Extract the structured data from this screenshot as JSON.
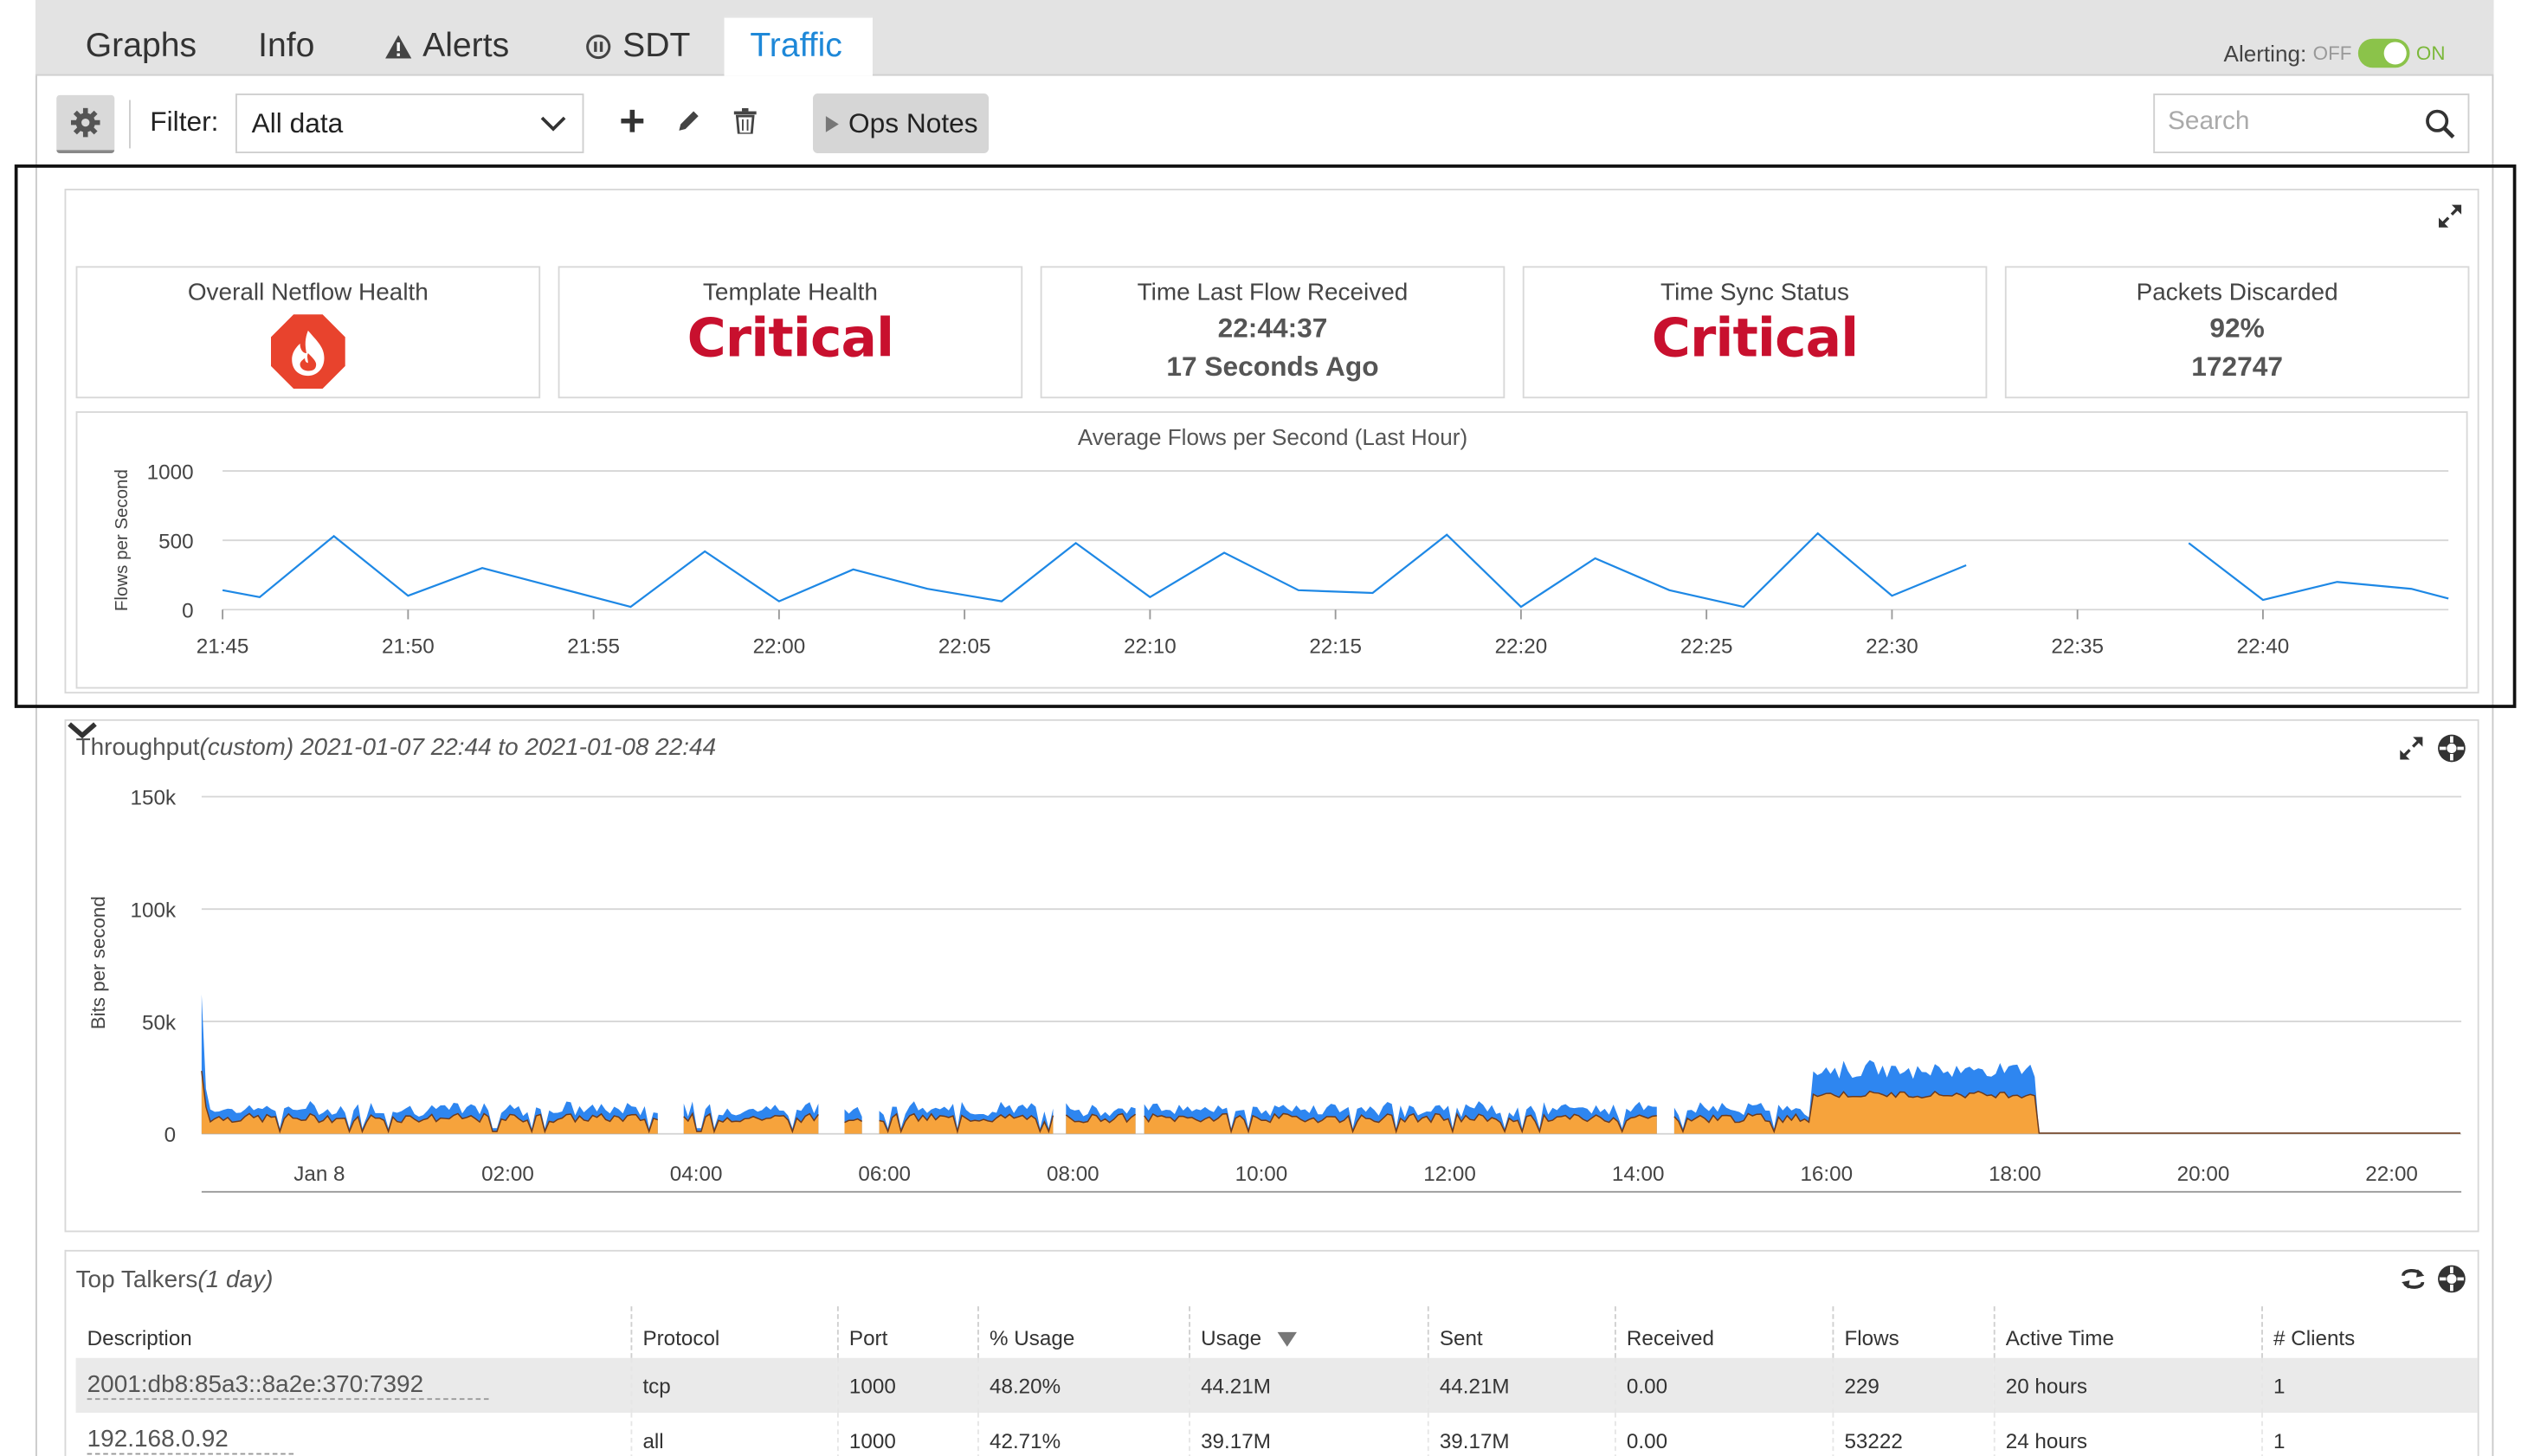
{
  "tabs": [
    {
      "label": "Graphs"
    },
    {
      "label": "Info"
    },
    {
      "label": "Alerts"
    },
    {
      "label": "SDT"
    },
    {
      "label": "Traffic"
    }
  ],
  "alerting": {
    "label": "Alerting:",
    "off": "OFF",
    "on": "ON",
    "state": "on"
  },
  "toolbar": {
    "filter_label": "Filter:",
    "filter_value": "All data",
    "ops_notes": "Ops Notes",
    "search_placeholder": "Search"
  },
  "netflow": {
    "tiles": [
      {
        "title": "Overall Netflow Health",
        "icon": "fire-octagon-icon"
      },
      {
        "title": "Template Health",
        "value": "Critical"
      },
      {
        "title": "Time Last Flow Received",
        "line1": "22:44:37",
        "line2": "17 Seconds Ago"
      },
      {
        "title": "Time Sync Status",
        "value": "Critical"
      },
      {
        "title": "Packets Discarded",
        "line1": "92%",
        "line2": "172747"
      }
    ],
    "critical_color": "#c8102e"
  },
  "chart_data": [
    {
      "type": "line",
      "title": "Average Flows per Second (Last Hour)",
      "ylabel": "Flows per Second",
      "ylim": [
        0,
        1000
      ],
      "yticks": [
        "1000",
        "500",
        "0"
      ],
      "xticks": [
        "21:45",
        "21:50",
        "21:55",
        "22:00",
        "22:05",
        "22:10",
        "22:15",
        "22:20",
        "22:25",
        "22:30",
        "22:35",
        "22:40"
      ],
      "x_minutes_from_2145": [
        0,
        1,
        3,
        5,
        7,
        9,
        11,
        13,
        15,
        17,
        19,
        21,
        23,
        25,
        27,
        29,
        31,
        33,
        35,
        37,
        39,
        41,
        43,
        45,
        47,
        53,
        55,
        57,
        59,
        60
      ],
      "values": [
        140,
        90,
        530,
        100,
        300,
        160,
        20,
        420,
        60,
        290,
        150,
        60,
        480,
        90,
        410,
        140,
        120,
        540,
        20,
        370,
        140,
        20,
        550,
        100,
        320,
        480,
        70,
        200,
        150,
        80
      ],
      "gap": [
        47,
        53
      ],
      "color": "#1e88e5"
    },
    {
      "type": "area",
      "title": "Throughput",
      "subtitle": "(custom) 2021-01-07 22:44 to 2021-01-08 22:44",
      "ylabel": "Bits per second",
      "ylim": [
        0,
        150000
      ],
      "yticks": [
        "150k",
        "100k",
        "50k",
        "0"
      ],
      "xticks": [
        "Jan 8",
        "02:00",
        "04:00",
        "06:00",
        "08:00",
        "10:00",
        "12:00",
        "14:00",
        "16:00",
        "18:00",
        "20:00",
        "22:00"
      ],
      "series": [
        {
          "color": "#2e86f0",
          "note": "total ~ 10k-15k baseline, ~30k between 16:00-18:00"
        },
        {
          "color": "#f6a33c",
          "note": "~8k-10k baseline, ~20k between 16:00-18:00"
        }
      ]
    }
  ],
  "throughput_panel": {
    "title": "Throughput",
    "subtitle": "(custom) 2021-01-07 22:44 to 2021-01-08 22:44"
  },
  "top_talkers": {
    "title": "Top Talkers",
    "subtitle": "(1 day)",
    "columns": [
      "Description",
      "Protocol",
      "Port",
      "% Usage",
      "Usage",
      "Sent",
      "Received",
      "Flows",
      "Active Time",
      "# Clients"
    ],
    "rows": [
      [
        "2001:db8:85a3::8a2e:370:7392",
        "tcp",
        "1000",
        "48.20%",
        "44.21M",
        "44.21M",
        "0.00",
        "229",
        "20 hours",
        "1"
      ],
      [
        "192.168.0.92",
        "all",
        "1000",
        "42.71%",
        "39.17M",
        "39.17M",
        "0.00",
        "53222",
        "24 hours",
        "1"
      ]
    ]
  }
}
